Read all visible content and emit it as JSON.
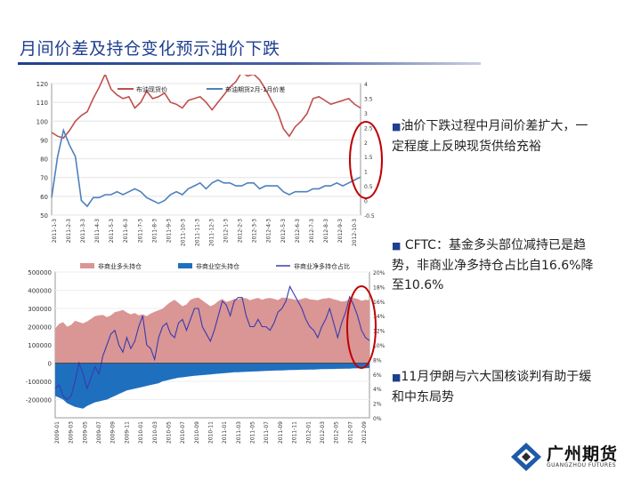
{
  "slide": {
    "title": "月间价差及持仓变化预示油价下跌"
  },
  "bullets": [
    {
      "mark": "■",
      "text": "油价下跌过程中月间价差扩大，一定程度上反映现货供给充裕"
    },
    {
      "mark": "■",
      "text": " CFTC：基金多头部位减持已是趋势，非商业净多持仓占比自16.6%降至10.6%"
    },
    {
      "mark": "■",
      "text": "11月伊朗与六大国核谈判有助于缓和中东局势"
    }
  ],
  "logo": {
    "name": "广州期货",
    "subtitle": "GUANGZHOU FUTURES",
    "colors": {
      "blue": "#1d5aa8",
      "dark": "#2b2b2b"
    }
  },
  "colors": {
    "title": "#1f3f8f",
    "brent_spot": "#c0504d",
    "brent_spread": "#4f81bd",
    "cftc_long": "#d99694",
    "cftc_short": "#1f6fbf",
    "cftc_ratio": "#3a3ab0",
    "highlight_ellipse": "#c00000"
  },
  "chart_data": [
    {
      "type": "line",
      "series": [
        {
          "name": "布油现货价",
          "axis": "left",
          "values": [
            94,
            92,
            91,
            95,
            100,
            103,
            105,
            112,
            118,
            125,
            117,
            114,
            112,
            113,
            107,
            110,
            116,
            112,
            113,
            115,
            110,
            109,
            107,
            111,
            112,
            113,
            110,
            106,
            110,
            114,
            118,
            121,
            126,
            124,
            125,
            122,
            117,
            111,
            105,
            96,
            92,
            97,
            100,
            104,
            112,
            113,
            111,
            109,
            110,
            111,
            112,
            109,
            107
          ]
        },
        {
          "name": "布油期货2月-1月价差",
          "axis": "right",
          "values": [
            0.1,
            1.5,
            2.4,
            1.9,
            1.5,
            0.0,
            -0.2,
            0.1,
            0.1,
            0.2,
            0.2,
            0.3,
            0.2,
            0.3,
            0.4,
            0.3,
            0.1,
            0.0,
            -0.1,
            0.0,
            0.2,
            0.3,
            0.2,
            0.4,
            0.5,
            0.6,
            0.4,
            0.6,
            0.7,
            0.6,
            0.6,
            0.5,
            0.5,
            0.6,
            0.6,
            0.4,
            0.5,
            0.5,
            0.5,
            0.3,
            0.2,
            0.3,
            0.3,
            0.3,
            0.4,
            0.4,
            0.5,
            0.5,
            0.6,
            0.5,
            0.6,
            0.7,
            0.8
          ]
        }
      ],
      "left_ticks": [
        "120",
        "110",
        "100",
        "90",
        "80",
        "70",
        "60",
        "50"
      ],
      "right_ticks": [
        "4",
        "3.5",
        "3",
        "2.5",
        "2",
        "1.5",
        "1",
        "0.5",
        "0",
        "-0.5"
      ],
      "ylim_left": [
        50,
        120
      ],
      "ylim_right": [
        -0.5,
        4
      ],
      "x_ticks": [
        "2011-1-3",
        "2011-2-3",
        "2011-3-3",
        "2011-4-3",
        "2011-5-3",
        "2011-6-3",
        "2011-7-3",
        "2011-8-3",
        "2011-9-3",
        "2011-10-3",
        "2011-11-3",
        "2011-12-3",
        "2012-1-3",
        "2012-2-3",
        "2012-3-3",
        "2012-4-3",
        "2012-5-3",
        "2012-6-3",
        "2012-7-3",
        "2012-8-3",
        "2012-9-3",
        "2012-10-3"
      ],
      "legend": "top-center"
    },
    {
      "type": "area",
      "series": [
        {
          "name": "非商业多头持仓",
          "axis": "left",
          "values": [
            190000,
            215000,
            225000,
            200000,
            210000,
            232000,
            225000,
            218000,
            228000,
            243000,
            258000,
            262000,
            265000,
            252000,
            262000,
            280000,
            285000,
            292000,
            278000,
            268000,
            275000,
            262000,
            268000,
            258000,
            272000,
            282000,
            290000,
            298000,
            318000,
            335000,
            348000,
            330000,
            312000,
            322000,
            348000,
            356000,
            360000,
            344000,
            328000,
            312000,
            322000,
            340000,
            352000,
            336000,
            342000,
            352000,
            350000,
            358000,
            356000,
            345000,
            352000,
            358000,
            348000,
            355000,
            357000,
            352000,
            346000,
            360000,
            358000,
            354000,
            350000,
            345000,
            352000,
            358000,
            350000,
            348000,
            345000,
            352000,
            355000,
            358000,
            350000,
            345000,
            338000,
            340000,
            352000,
            358000,
            352000,
            342000,
            348000,
            345000
          ]
        },
        {
          "name": "非商业空头持仓",
          "axis": "left",
          "values": [
            -180000,
            -190000,
            -200000,
            -220000,
            -230000,
            -240000,
            -245000,
            -250000,
            -235000,
            -225000,
            -215000,
            -210000,
            -205000,
            -200000,
            -190000,
            -180000,
            -170000,
            -160000,
            -150000,
            -145000,
            -140000,
            -135000,
            -130000,
            -125000,
            -120000,
            -115000,
            -110000,
            -100000,
            -95000,
            -90000,
            -85000,
            -80000,
            -78000,
            -75000,
            -72000,
            -70000,
            -68000,
            -66000,
            -64000,
            -62000,
            -60000,
            -58000,
            -56000,
            -54000,
            -52000,
            -50000,
            -50000,
            -49000,
            -48000,
            -47000,
            -46000,
            -45000,
            -44000,
            -43000,
            -42000,
            -41000,
            -40000,
            -40000,
            -39000,
            -38000,
            -38000,
            -37000,
            -36000,
            -36000,
            -35000,
            -35000,
            -34000,
            -33000,
            -33000,
            -32000,
            -32000,
            -31000,
            -31000,
            -30000,
            -30000,
            -29000,
            -29000,
            -28000,
            -28000,
            -27000
          ]
        },
        {
          "name": "非商业净多持仓占比",
          "axis": "right",
          "values": [
            4.0,
            4.5,
            3.0,
            2.5,
            3.0,
            5.0,
            7.5,
            6.0,
            4.0,
            5.5,
            7.0,
            6.0,
            8.5,
            10.0,
            11.5,
            12.0,
            10.0,
            9.0,
            11.0,
            9.5,
            10.5,
            12.5,
            14.0,
            10.0,
            9.5,
            8.0,
            11.0,
            12.5,
            13.0,
            11.5,
            11.0,
            13.0,
            13.5,
            12.0,
            13.5,
            15.0,
            15.0,
            12.5,
            11.5,
            10.5,
            12.0,
            14.0,
            16.0,
            15.5,
            14.0,
            16.0,
            16.5,
            16.5,
            14.0,
            12.5,
            12.5,
            13.5,
            12.5,
            12.5,
            12.0,
            13.0,
            14.5,
            15.0,
            16.0,
            18.0,
            17.0,
            16.0,
            15.0,
            13.5,
            12.5,
            12.0,
            11.0,
            12.5,
            13.5,
            15.0,
            13.0,
            11.0,
            13.0,
            14.5,
            16.6,
            15.5,
            14.0,
            12.0,
            11.0,
            10.6
          ]
        }
      ],
      "left_ticks": [
        "500000",
        "400000",
        "300000",
        "200000",
        "100000",
        "0",
        "-100000",
        "-200000"
      ],
      "right_ticks": [
        "20%",
        "18%",
        "16%",
        "14%",
        "12%",
        "10%",
        "8%",
        "6%",
        "4%",
        "2%",
        "0%"
      ],
      "ylim_left": [
        -300000,
        500000
      ],
      "ylim_right": [
        0,
        20
      ],
      "x_ticks": [
        "2009-01",
        "2009-03",
        "2009-05",
        "2009-07",
        "2009-09",
        "2009-11",
        "2010-01",
        "2010-03",
        "2010-05",
        "2010-07",
        "2010-09",
        "2010-11",
        "2011-01",
        "2011-03",
        "2011-05",
        "2011-07",
        "2011-09",
        "2011-11",
        "2012-01",
        "2012-03",
        "2012-05",
        "2012-07",
        "2012-09"
      ],
      "legend": "top"
    }
  ]
}
